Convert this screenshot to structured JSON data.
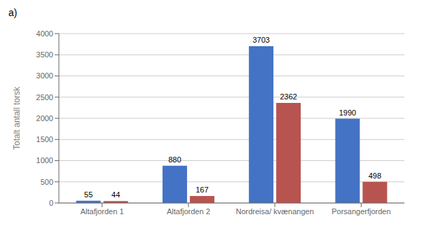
{
  "chart_data": {
    "type": "bar",
    "title": "a)",
    "categories": [
      "Altafjorden 1",
      "Altafjorden 2",
      "Nordreisa/ kvænangen",
      "Porsangerfjorden"
    ],
    "series": [
      {
        "color": "#4472C4",
        "values": [
          55,
          880,
          3703,
          1990
        ]
      },
      {
        "color": "#B85450",
        "values": [
          44,
          167,
          2362,
          498
        ]
      }
    ],
    "ylabel": "Totalt antall torsk",
    "ylim": [
      0,
      4000
    ],
    "yticks": [
      0,
      500,
      1000,
      1500,
      2000,
      2500,
      3000,
      3500,
      4000
    ],
    "grid": true,
    "data_labels": true
  }
}
